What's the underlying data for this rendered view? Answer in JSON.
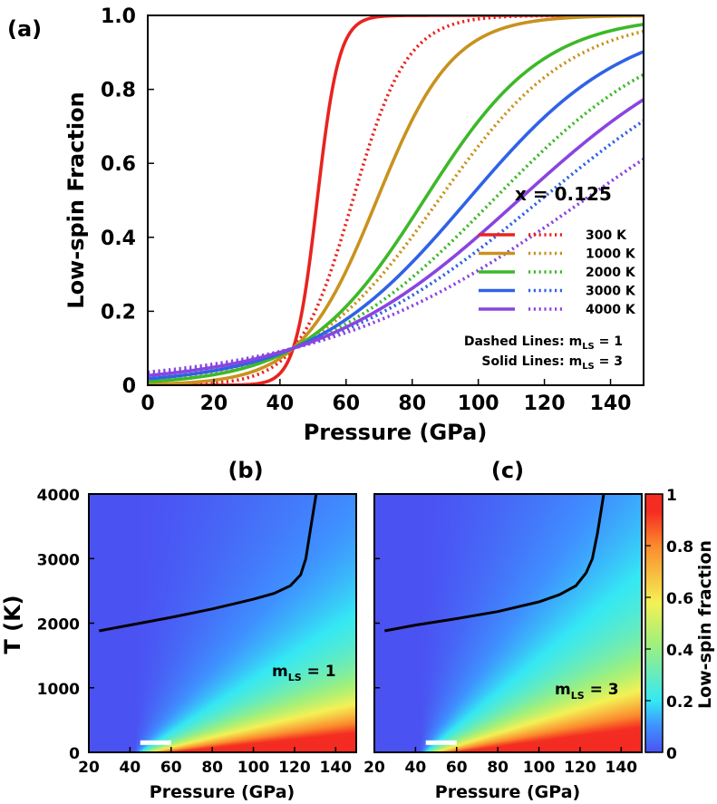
{
  "figure": {
    "colors": {
      "axes": "#000000",
      "background": "#ffffff",
      "marker": "#ffffff",
      "boundary": "#000000"
    }
  },
  "chart_data": [
    {
      "id": "a",
      "type": "line",
      "panel_label": "(a)",
      "title": "",
      "xlabel": "Pressure (GPa)",
      "ylabel": "Low-spin Fraction",
      "xlim": [
        0,
        150
      ],
      "ylim": [
        0,
        1
      ],
      "xticks": [
        0,
        20,
        40,
        60,
        80,
        100,
        120,
        140
      ],
      "xtick_labels": [
        "0",
        "20",
        "40",
        "60",
        "80",
        "100",
        "120",
        "140"
      ],
      "yticks": [
        0,
        0.2,
        0.4,
        0.6,
        0.8,
        1.0
      ],
      "ytick_labels": [
        "0",
        "0.2",
        "0.4",
        "0.6",
        "0.8",
        "1.0"
      ],
      "annotation": "x = 0.125",
      "legend_position": "right",
      "legend_notes": [
        {
          "prefix": "Dashed Lines:  m",
          "sub": "LS",
          "suffix": " = 1"
        },
        {
          "prefix": "Solid Lines:  m",
          "sub": "LS",
          "suffix": " = 3"
        }
      ],
      "crossing_point": {
        "pressure": 44,
        "fraction": 0.1
      },
      "series": [
        {
          "name": "300 K",
          "temperature": 300,
          "color": "#e8231f",
          "solid_width": 3.3,
          "dashed_width": 8.2
        },
        {
          "name": "1000 K",
          "temperature": 1000,
          "color": "#c8921e",
          "solid_width": 11.5,
          "dashed_width": 20
        },
        {
          "name": "2000 K",
          "temperature": 2000,
          "color": "#3db829",
          "solid_width": 18,
          "dashed_width": 27.5
        },
        {
          "name": "3000 K",
          "temperature": 3000,
          "color": "#3062e6",
          "solid_width": 24,
          "dashed_width": 34
        },
        {
          "name": "4000 K",
          "temperature": 4000,
          "color": "#8a44e0",
          "solid_width": 31,
          "dashed_width": 40
        }
      ]
    },
    {
      "id": "b",
      "type": "heatmap",
      "panel_label": "(b)",
      "xlabel": "Pressure (GPa)",
      "ylabel": "T (K)",
      "xlim": [
        20,
        150
      ],
      "ylim": [
        0,
        4000
      ],
      "xticks": [
        20,
        40,
        60,
        80,
        100,
        120,
        140
      ],
      "xtick_labels": [
        "20",
        "40",
        "60",
        "80",
        "100",
        "120",
        "140"
      ],
      "yticks": [
        0,
        1000,
        2000,
        3000,
        4000
      ],
      "ytick_labels": [
        "0",
        "1000",
        "2000",
        "3000",
        "4000"
      ],
      "annotation": {
        "prefix": "m",
        "sub": "LS",
        "suffix": " = 1"
      },
      "spin_crossover": {
        "onset_pressure": 42,
        "transition_width_per_K": 0.0105
      },
      "marker": {
        "p_start": 45,
        "p_end": 60,
        "temperature": 150
      },
      "boundary_line": [
        {
          "p": 25,
          "t": 1880
        },
        {
          "p": 40,
          "t": 1970
        },
        {
          "p": 60,
          "t": 2090
        },
        {
          "p": 80,
          "t": 2220
        },
        {
          "p": 100,
          "t": 2370
        },
        {
          "p": 110,
          "t": 2460
        },
        {
          "p": 118,
          "t": 2580
        },
        {
          "p": 123,
          "t": 2750
        },
        {
          "p": 125.5,
          "t": 3000
        },
        {
          "p": 127.5,
          "t": 3400
        },
        {
          "p": 129.5,
          "t": 3800
        },
        {
          "p": 130.5,
          "t": 4000
        }
      ]
    },
    {
      "id": "c",
      "type": "heatmap",
      "panel_label": "(c)",
      "xlabel": "Pressure (GPa)",
      "ylabel": "",
      "xlim": [
        20,
        150
      ],
      "ylim": [
        0,
        4000
      ],
      "xticks": [
        20,
        40,
        60,
        80,
        100,
        120,
        140
      ],
      "xtick_labels": [
        "20",
        "40",
        "60",
        "80",
        "100",
        "120",
        "140"
      ],
      "yticks": [
        0,
        1000,
        2000,
        3000,
        4000
      ],
      "annotation": {
        "prefix": "m",
        "sub": "LS",
        "suffix": " = 3"
      },
      "spin_crossover": {
        "onset_pressure": 42,
        "transition_width_per_K": 0.0082
      },
      "marker": {
        "p_start": 45,
        "p_end": 60,
        "temperature": 150
      },
      "boundary_line": [
        {
          "p": 25,
          "t": 1880
        },
        {
          "p": 40,
          "t": 1970
        },
        {
          "p": 60,
          "t": 2070
        },
        {
          "p": 80,
          "t": 2180
        },
        {
          "p": 100,
          "t": 2330
        },
        {
          "p": 110,
          "t": 2440
        },
        {
          "p": 118,
          "t": 2580
        },
        {
          "p": 123,
          "t": 2780
        },
        {
          "p": 126,
          "t": 3000
        },
        {
          "p": 128.5,
          "t": 3400
        },
        {
          "p": 130.5,
          "t": 3800
        },
        {
          "p": 131.5,
          "t": 4000
        }
      ]
    }
  ],
  "colorbar": {
    "label": "Low-spin fraction",
    "range": [
      0,
      1
    ],
    "ticks": [
      0,
      0.2,
      0.4,
      0.6,
      0.8,
      1
    ],
    "tick_labels": [
      "0",
      "0.2",
      "0.4",
      "0.6",
      "0.8",
      "1"
    ],
    "colormap": [
      {
        "stop": 0.0,
        "color": "#4b52f2"
      },
      {
        "stop": 0.1,
        "color": "#3f90ff"
      },
      {
        "stop": 0.2,
        "color": "#35e8f4"
      },
      {
        "stop": 0.42,
        "color": "#a0f07c"
      },
      {
        "stop": 0.58,
        "color": "#f4f155"
      },
      {
        "stop": 0.8,
        "color": "#fb8a2d"
      },
      {
        "stop": 0.93,
        "color": "#f42d22"
      },
      {
        "stop": 1.0,
        "color": "#f32b22"
      }
    ]
  }
}
